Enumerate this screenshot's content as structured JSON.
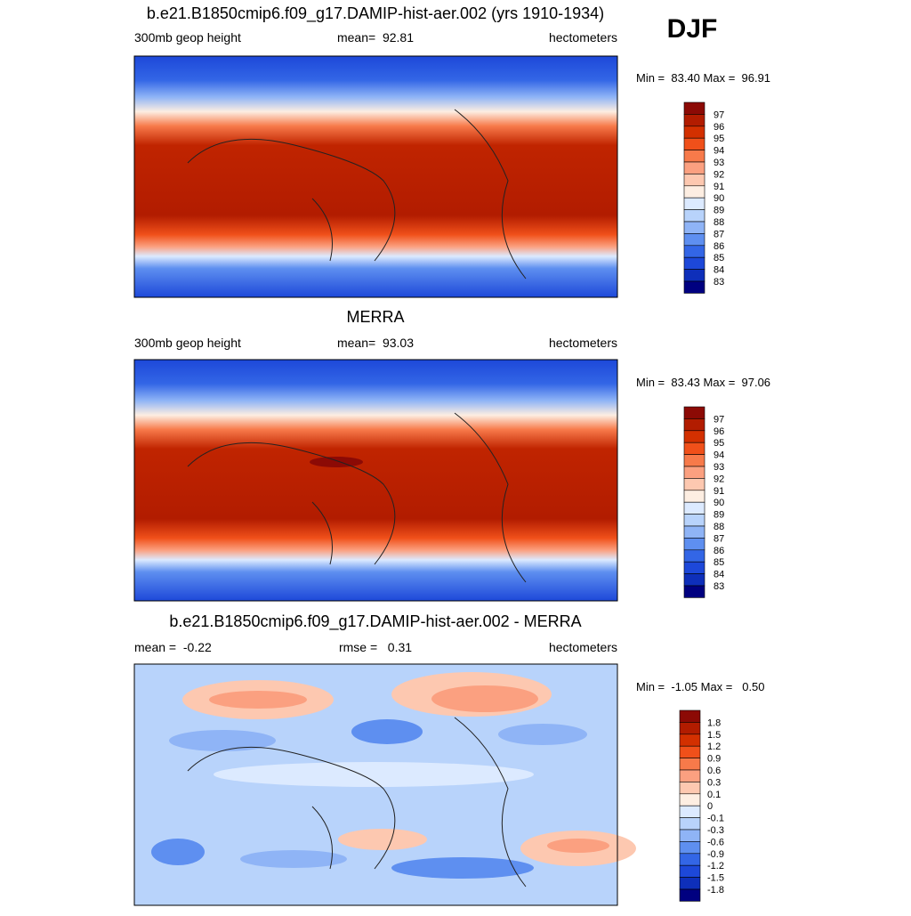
{
  "season": "DJF",
  "colors": [
    "#8c0a05",
    "#b21c00",
    "#d33000",
    "#f0501a",
    "#f77a4a",
    "#fba080",
    "#fdc8b0",
    "#fdeee2",
    "#dceaff",
    "#b8d3fb",
    "#8fb4f6",
    "#5e8ff0",
    "#3366e6",
    "#1d48d9",
    "#0e2fba",
    "#000080"
  ],
  "panels": [
    {
      "title": "b.e21.B1850cmip6.f09_g17.DAMIP-hist-aer.002 (yrs 1910-1934)",
      "left": "300mb geop height",
      "center": "mean=  92.81",
      "right": "hectometers",
      "minmax": "Min =  83.40 Max =  96.91",
      "colorbar_labels": [
        "97",
        "96",
        "95",
        "94",
        "93",
        "92",
        "91",
        "90",
        "89",
        "88",
        "87",
        "86",
        "85",
        "84",
        "83"
      ]
    },
    {
      "title": "MERRA",
      "left": "300mb geop height",
      "center": "mean=  93.03",
      "right": "hectometers",
      "minmax": "Min =  83.43 Max =  97.06",
      "colorbar_labels": [
        "97",
        "96",
        "95",
        "94",
        "93",
        "92",
        "91",
        "90",
        "89",
        "88",
        "87",
        "86",
        "85",
        "84",
        "83"
      ]
    },
    {
      "title": "b.e21.B1850cmip6.f09_g17.DAMIP-hist-aer.002 - MERRA",
      "left": "mean =  -0.22",
      "center": "rmse =   0.31",
      "right": "hectometers",
      "minmax": "Min =  -1.05 Max =   0.50",
      "colorbar_labels": [
        "1.8",
        "1.5",
        "1.2",
        "0.9",
        "0.6",
        "0.3",
        "0.1",
        "0",
        "-0.1",
        "-0.3",
        "-0.6",
        "-0.9",
        "-1.2",
        "-1.5",
        "-1.8"
      ]
    }
  ]
}
